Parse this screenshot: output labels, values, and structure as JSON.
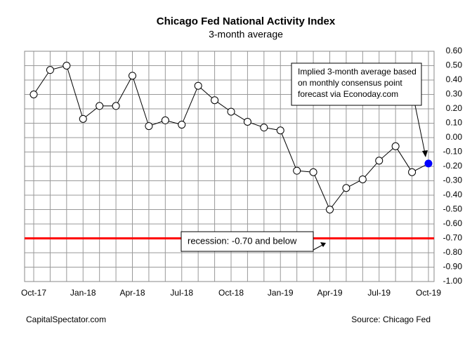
{
  "chart_data": {
    "type": "line",
    "title": "Chicago Fed National Activity Index",
    "subtitle": "3-month average",
    "categories": [
      "Oct-17",
      null,
      null,
      "Jan-18",
      null,
      null,
      "Apr-18",
      null,
      null,
      "Jul-18",
      null,
      null,
      "Oct-18",
      null,
      null,
      "Jan-19",
      null,
      null,
      "Apr-19",
      null,
      null,
      "Jul-19",
      null,
      null,
      "Oct-19"
    ],
    "series": [
      {
        "name": "3-month average",
        "color": "#000000",
        "values": [
          0.3,
          0.47,
          0.5,
          0.13,
          0.22,
          0.22,
          0.43,
          0.08,
          0.12,
          0.09,
          0.36,
          0.26,
          0.18,
          0.11,
          0.07,
          0.05,
          -0.23,
          -0.24,
          -0.5,
          -0.35,
          -0.29,
          -0.16,
          -0.06,
          -0.24,
          -0.18
        ]
      }
    ],
    "marker_color": "#ffffff",
    "forecast_index": 24,
    "forecast_color": "#0000ff",
    "ylim": [
      -1.0,
      0.6
    ],
    "yticks": [
      {
        "value": 0.6,
        "label": "0.60"
      },
      {
        "value": 0.5,
        "label": "0.50"
      },
      {
        "value": 0.4,
        "label": "0.40"
      },
      {
        "value": 0.3,
        "label": "0.30"
      },
      {
        "value": 0.2,
        "label": "0.20"
      },
      {
        "value": 0.1,
        "label": "0.10"
      },
      {
        "value": 0,
        "label": "0.00"
      },
      {
        "value": -0.1,
        "label": "-0.10"
      },
      {
        "value": -0.2,
        "label": "-0.20"
      },
      {
        "value": -0.3,
        "label": "-0.30"
      },
      {
        "value": -0.4,
        "label": "-0.40"
      },
      {
        "value": -0.5,
        "label": "-0.50"
      },
      {
        "value": -0.6,
        "label": "-0.60"
      },
      {
        "value": -0.7,
        "label": "-0.70"
      },
      {
        "value": -0.8,
        "label": "-0.80"
      },
      {
        "value": -0.9,
        "label": "-0.90"
      },
      {
        "value": -1,
        "label": "-1.00"
      }
    ],
    "grid": true,
    "recession_line": {
      "value": -0.7,
      "color": "#ff0000",
      "label": "recession: -0.70 and below"
    },
    "annotation": [
      "Implied 3-month average based",
      "on monthly consensus point",
      "forecast via Econoday.com"
    ],
    "footer_left": "CapitalSpectator.com",
    "footer_right": "Source: Chicago Fed"
  }
}
